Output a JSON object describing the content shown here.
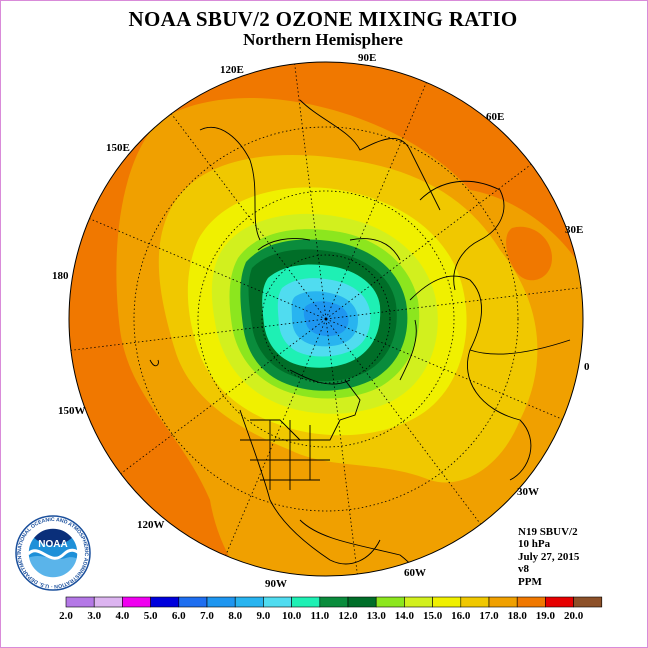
{
  "title": "NOAA SBUV/2 OZONE MIXING RATIO",
  "subtitle": "Northern Hemisphere",
  "longitude_labels": [
    "90E",
    "60E",
    "30E",
    "0",
    "30W",
    "60W",
    "90W",
    "120W",
    "150W",
    "180",
    "150E",
    "120E"
  ],
  "info": {
    "instrument": "N19 SBUV/2",
    "level": "10 hPa",
    "date": "July 27, 2015",
    "version": "v8",
    "units": "PPM"
  },
  "logo": {
    "text": "NOAA",
    "ring_text": "NATIONAL OCEANIC AND ATMOSPHERIC ADMINISTRATION · U.S. DEPARTMENT OF COMMERCE"
  },
  "colorbar": {
    "ticks": [
      "2.0",
      "3.0",
      "4.0",
      "5.0",
      "6.0",
      "7.0",
      "8.0",
      "9.0",
      "10.0",
      "11.0",
      "12.0",
      "13.0",
      "14.0",
      "15.0",
      "16.0",
      "17.0",
      "18.0",
      "19.0",
      "20.0"
    ],
    "colors": [
      "#b478e6",
      "#dcb4f0",
      "#f000f0",
      "#0000dc",
      "#1e6ef0",
      "#1e96f0",
      "#28b4f0",
      "#50dcf0",
      "#1ef0b4",
      "#0a8c3c",
      "#006e28",
      "#8ce61e",
      "#d2f01e",
      "#f0f000",
      "#f0c800",
      "#f0a000",
      "#f07800",
      "#e60000",
      "#8c5028"
    ]
  },
  "map_colors": {
    "band_17_18": "#f07800",
    "band_16_17": "#f0a000",
    "band_15_16": "#f0c800",
    "band_14_15": "#f0f000",
    "band_13_14": "#d2f01e",
    "band_12_13": "#8ce61e",
    "band_11_12": "#006e28",
    "band_10_11": "#0a8c3c",
    "band_9_10": "#1ef0b4",
    "band_8_9": "#50dcf0",
    "band_7_8": "#28b4f0",
    "band_6_7": "#1e96f0"
  }
}
